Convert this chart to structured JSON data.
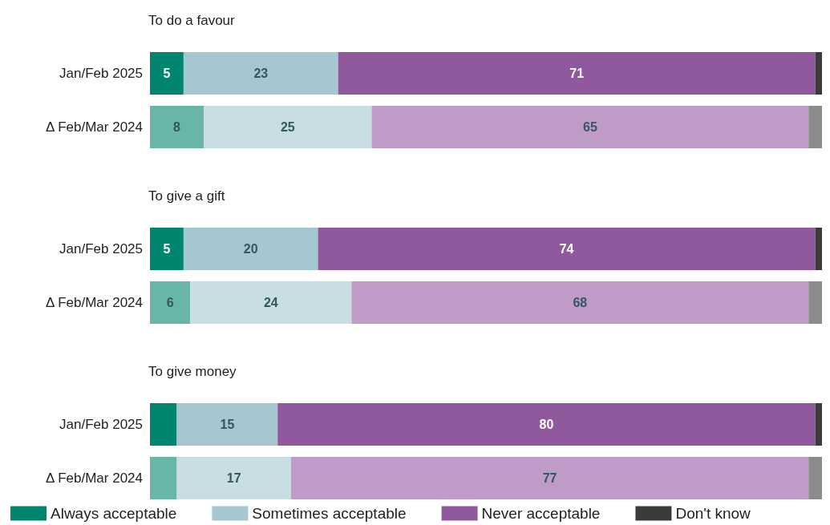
{
  "chart_data": [
    {
      "type": "bar",
      "title": "To do a favour",
      "stacked": true,
      "orientation": "horizontal",
      "xlim": [
        0,
        100
      ],
      "tick_labels": "y",
      "legend": false,
      "categories": [
        "Jan/Feb 2025",
        "Δ Feb/Mar 2024"
      ],
      "series": [
        {
          "color": "#00866e",
          "colors": [
            "#00866e",
            "#68b6a8"
          ],
          "values": [
            5,
            8
          ],
          "value_labels": [
            "5",
            "8"
          ]
        },
        {
          "color": "#a5c8d0",
          "colors": [
            "#a5c8d0",
            "#c8dee2"
          ],
          "values": [
            23,
            25
          ],
          "value_labels": [
            "23",
            "25"
          ]
        },
        {
          "color": "#91599d",
          "colors": [
            "#91599d",
            "#bf9cc7"
          ],
          "values": [
            71,
            65
          ],
          "value_labels": [
            "71",
            "65"
          ]
        },
        {
          "color": "#3b3b3c",
          "colors": [
            "#3b3b3c",
            "#8c8b8c"
          ],
          "values": [
            1,
            2
          ],
          "value_labels": [
            null,
            null
          ]
        }
      ]
    },
    {
      "type": "bar",
      "title": "To give a gift",
      "stacked": true,
      "orientation": "horizontal",
      "xlim": [
        0,
        100
      ],
      "tick_labels": "y",
      "legend": false,
      "categories": [
        "Jan/Feb 2025",
        "Δ Feb/Mar 2024"
      ],
      "series": [
        {
          "color": "#00866e",
          "colors": [
            "#00866e",
            "#68b6a8"
          ],
          "values": [
            5,
            6
          ],
          "value_labels": [
            "5",
            "6"
          ]
        },
        {
          "color": "#a5c8d0",
          "colors": [
            "#a5c8d0",
            "#c8dee2"
          ],
          "values": [
            20,
            24
          ],
          "value_labels": [
            "20",
            "24"
          ]
        },
        {
          "color": "#91599d",
          "colors": [
            "#91599d",
            "#bf9cc7"
          ],
          "values": [
            74,
            68
          ],
          "value_labels": [
            "74",
            "68"
          ]
        },
        {
          "color": "#3b3b3c",
          "colors": [
            "#3b3b3c",
            "#8c8b8c"
          ],
          "values": [
            1,
            2
          ],
          "value_labels": [
            null,
            null
          ]
        }
      ]
    },
    {
      "type": "bar",
      "title": "To give money",
      "stacked": true,
      "orientation": "horizontal",
      "xlim": [
        0,
        100
      ],
      "tick_labels": "y",
      "legend": "bottom",
      "categories": [
        "Jan/Feb 2025",
        "Δ Feb/Mar 2024"
      ],
      "series": [
        {
          "name": "Always acceptable",
          "color": "#00866e",
          "colors": [
            "#00866e",
            "#68b6a8"
          ],
          "values": [
            4,
            4
          ],
          "value_labels": [
            null,
            null
          ]
        },
        {
          "name": "Sometimes acceptable",
          "color": "#a5c8d0",
          "colors": [
            "#a5c8d0",
            "#c8dee2"
          ],
          "values": [
            15,
            17
          ],
          "value_labels": [
            "15",
            "17"
          ]
        },
        {
          "name": "Never acceptable",
          "color": "#91599d",
          "colors": [
            "#91599d",
            "#bf9cc7"
          ],
          "values": [
            80,
            77
          ],
          "value_labels": [
            "80",
            "77"
          ]
        },
        {
          "name": "Don't know",
          "color": "#3b3b3c",
          "colors": [
            "#3b3b3c",
            "#8c8b8c"
          ],
          "values": [
            1,
            2
          ],
          "value_labels": [
            null,
            null
          ]
        }
      ]
    }
  ]
}
